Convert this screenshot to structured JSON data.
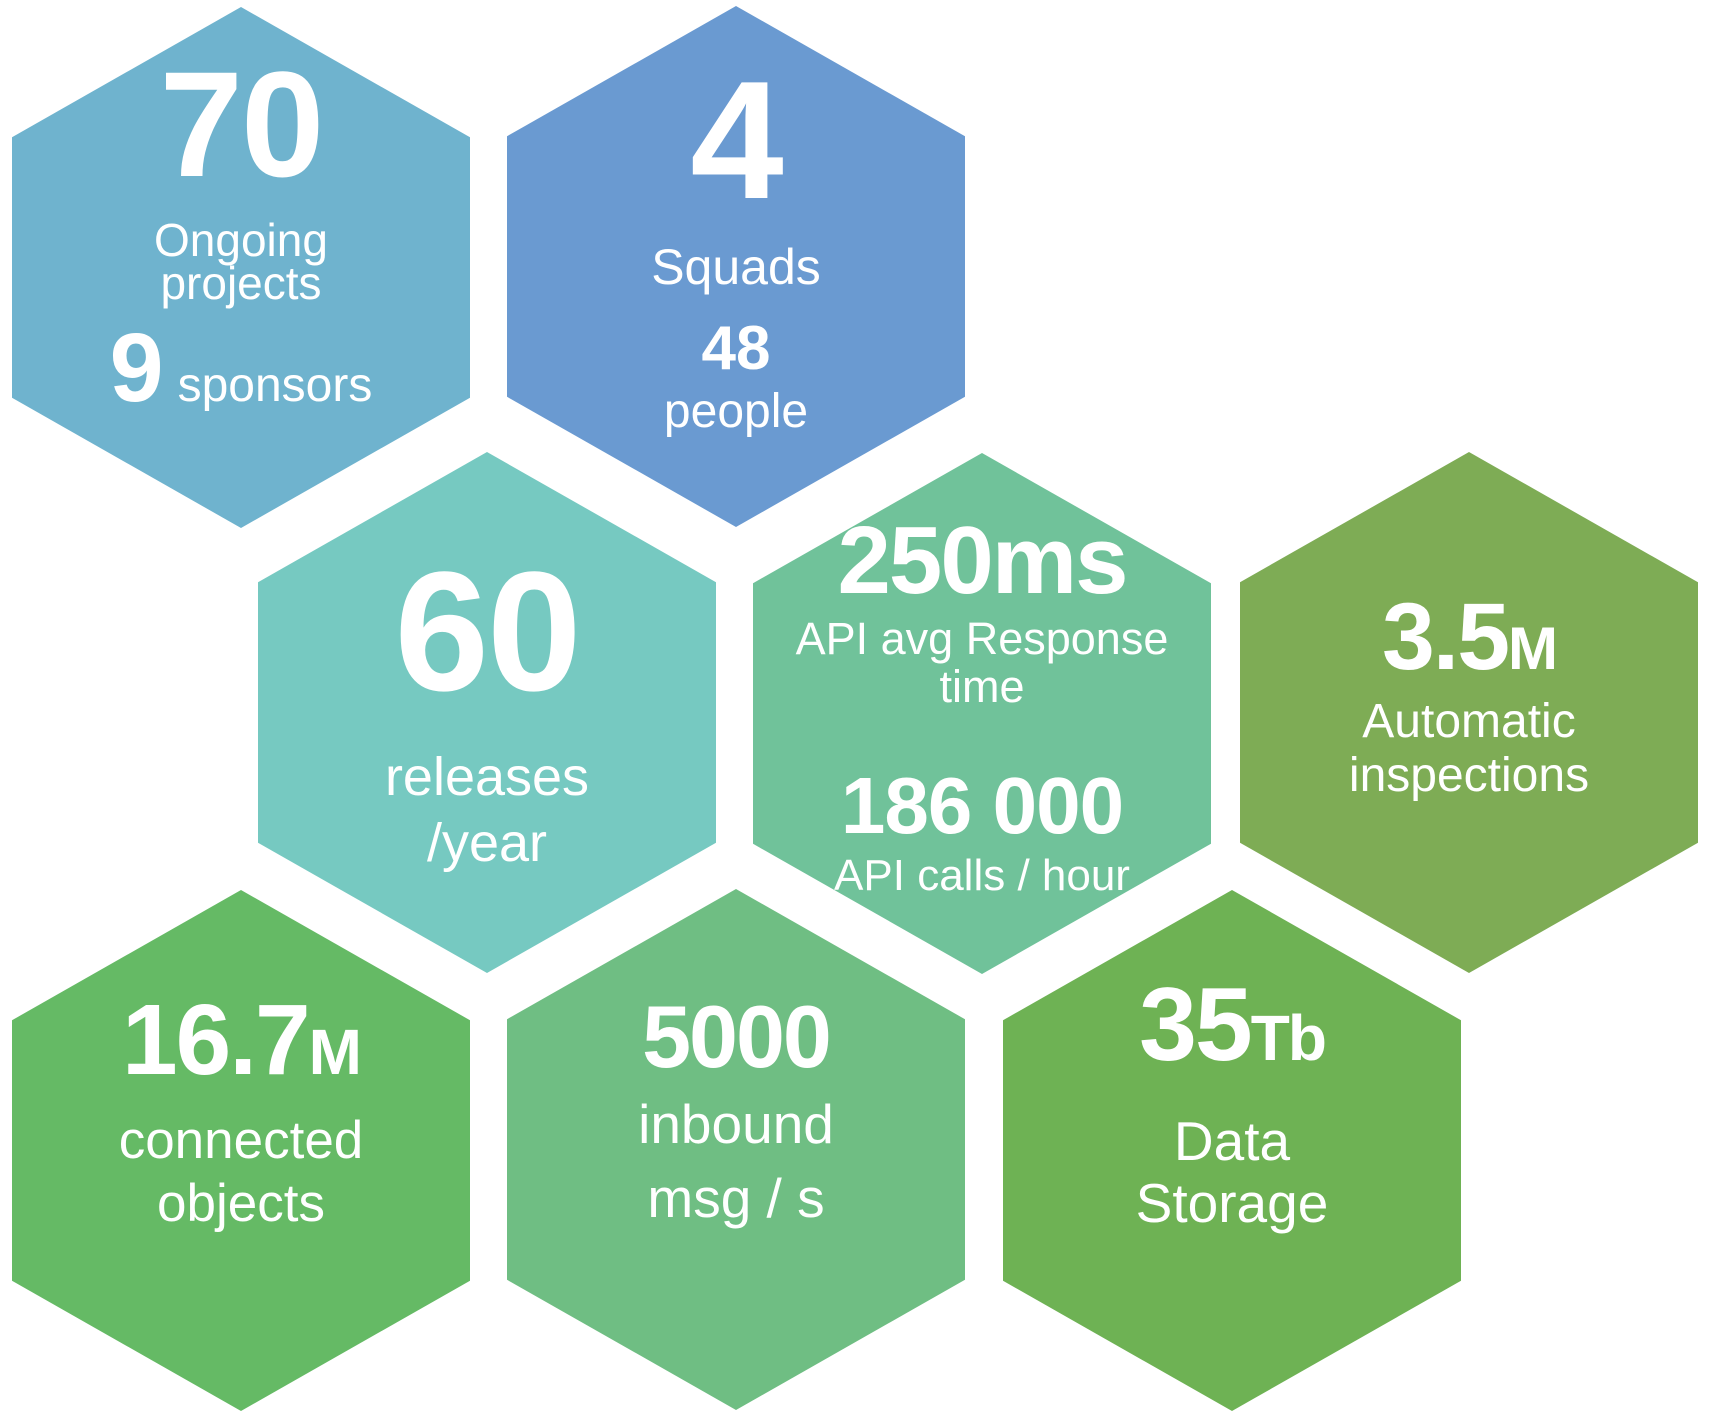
{
  "page": {
    "background": "#ffffff",
    "text_color": "#ffffff"
  },
  "hexagons": [
    {
      "name": "ongoing-projects",
      "color": "#6FB3CE",
      "big": "70",
      "line1": "Ongoing",
      "line2": "projects",
      "sub_num": "9",
      "sub_label": "sponsors"
    },
    {
      "name": "squads",
      "color": "#6A9AD1",
      "big": "4",
      "label": "Squads",
      "sub_num": "48",
      "sub_label": "people"
    },
    {
      "name": "releases-per-year",
      "color": "#76C9C1",
      "big": "60",
      "line1": "releases",
      "line2": "/year"
    },
    {
      "name": "api-performance",
      "color": "#70C29A",
      "big": "250ms",
      "line1": "API avg Response",
      "line2": "time",
      "sub_num": "186 000",
      "sub_label": "API calls / hour"
    },
    {
      "name": "automatic-inspections",
      "color": "#7EAC55",
      "num": "3.5",
      "suffix": "M",
      "line1": "Automatic",
      "line2": "inspections"
    },
    {
      "name": "connected-objects",
      "color": "#65BA65",
      "num": "16.7",
      "suffix": "M",
      "line1": "connected",
      "line2": "objects"
    },
    {
      "name": "inbound-messages",
      "color": "#6FBE83",
      "big": "5000",
      "line1": "inbound",
      "line2": "msg / s"
    },
    {
      "name": "data-storage",
      "color": "#6EB254",
      "num": "35",
      "suffix": "Tb",
      "line1": "Data",
      "line2": "Storage"
    }
  ]
}
